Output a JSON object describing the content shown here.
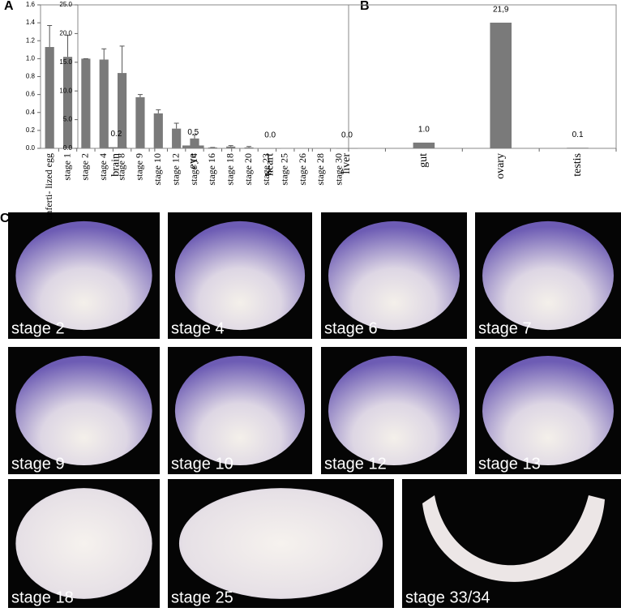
{
  "chart_data": [
    {
      "type": "bar",
      "panel": "A",
      "categories": [
        "unferti- lized egg",
        "stage 1",
        "stage 2",
        "stage 4",
        "stage 8",
        "stage 9",
        "stage 10",
        "stage 12",
        "stage 14",
        "stage 16",
        "stage 18",
        "stage 20",
        "stage 23",
        "stage 25",
        "stage 26",
        "stage 28",
        "stage 30"
      ],
      "values": [
        1.13,
        1.02,
        1.0,
        0.99,
        0.84,
        0.57,
        0.39,
        0.22,
        0.11,
        0.01,
        0.02,
        0.01,
        0,
        0,
        0,
        0,
        0
      ],
      "errors": [
        0.24,
        0.24,
        0.0,
        0.12,
        0.3,
        0.03,
        0.04,
        0.06,
        0.04,
        0.0,
        0.01,
        0.01,
        0,
        0,
        0,
        0,
        0
      ],
      "color": "#7a7a7a",
      "ylim": [
        0,
        1.6
      ],
      "yticks": [
        {
          "value": 0,
          "label": "0.0"
        },
        0.2,
        0.4,
        0.6,
        0.8,
        {
          "value": 1,
          "label": "1.0"
        },
        1.2,
        1.4,
        1.6
      ]
    },
    {
      "type": "bar",
      "panel": "B",
      "categories": [
        "brain",
        "eye",
        "heart",
        "liver",
        "gut",
        "ovary",
        "testis"
      ],
      "values": [
        0.2,
        0.5,
        0.0,
        0.0,
        1.0,
        21.9,
        0.1
      ],
      "value_labels": [
        "0.2",
        "0.5",
        "0.0",
        "0.0",
        "1.0",
        "21,9",
        "0.1"
      ],
      "color": "#7a7a7a",
      "ylim": [
        0,
        25
      ],
      "yticks": [
        {
          "value": 0,
          "label": "0.0"
        },
        {
          "value": 5,
          "label": "5.0"
        },
        {
          "value": 10,
          "label": "10.0"
        },
        {
          "value": 15,
          "label": "15.0"
        },
        {
          "value": 20,
          "label": "20.0"
        },
        {
          "value": 25,
          "label": "25.0"
        }
      ]
    }
  ],
  "panel_c": {
    "label": "C",
    "images": [
      "stage 2",
      "stage 4",
      "stage 6",
      "stage 7",
      "stage 9",
      "stage 10",
      "stage 12",
      "stage 13",
      "stage 18",
      "stage 25",
      "stage 33/34"
    ]
  }
}
